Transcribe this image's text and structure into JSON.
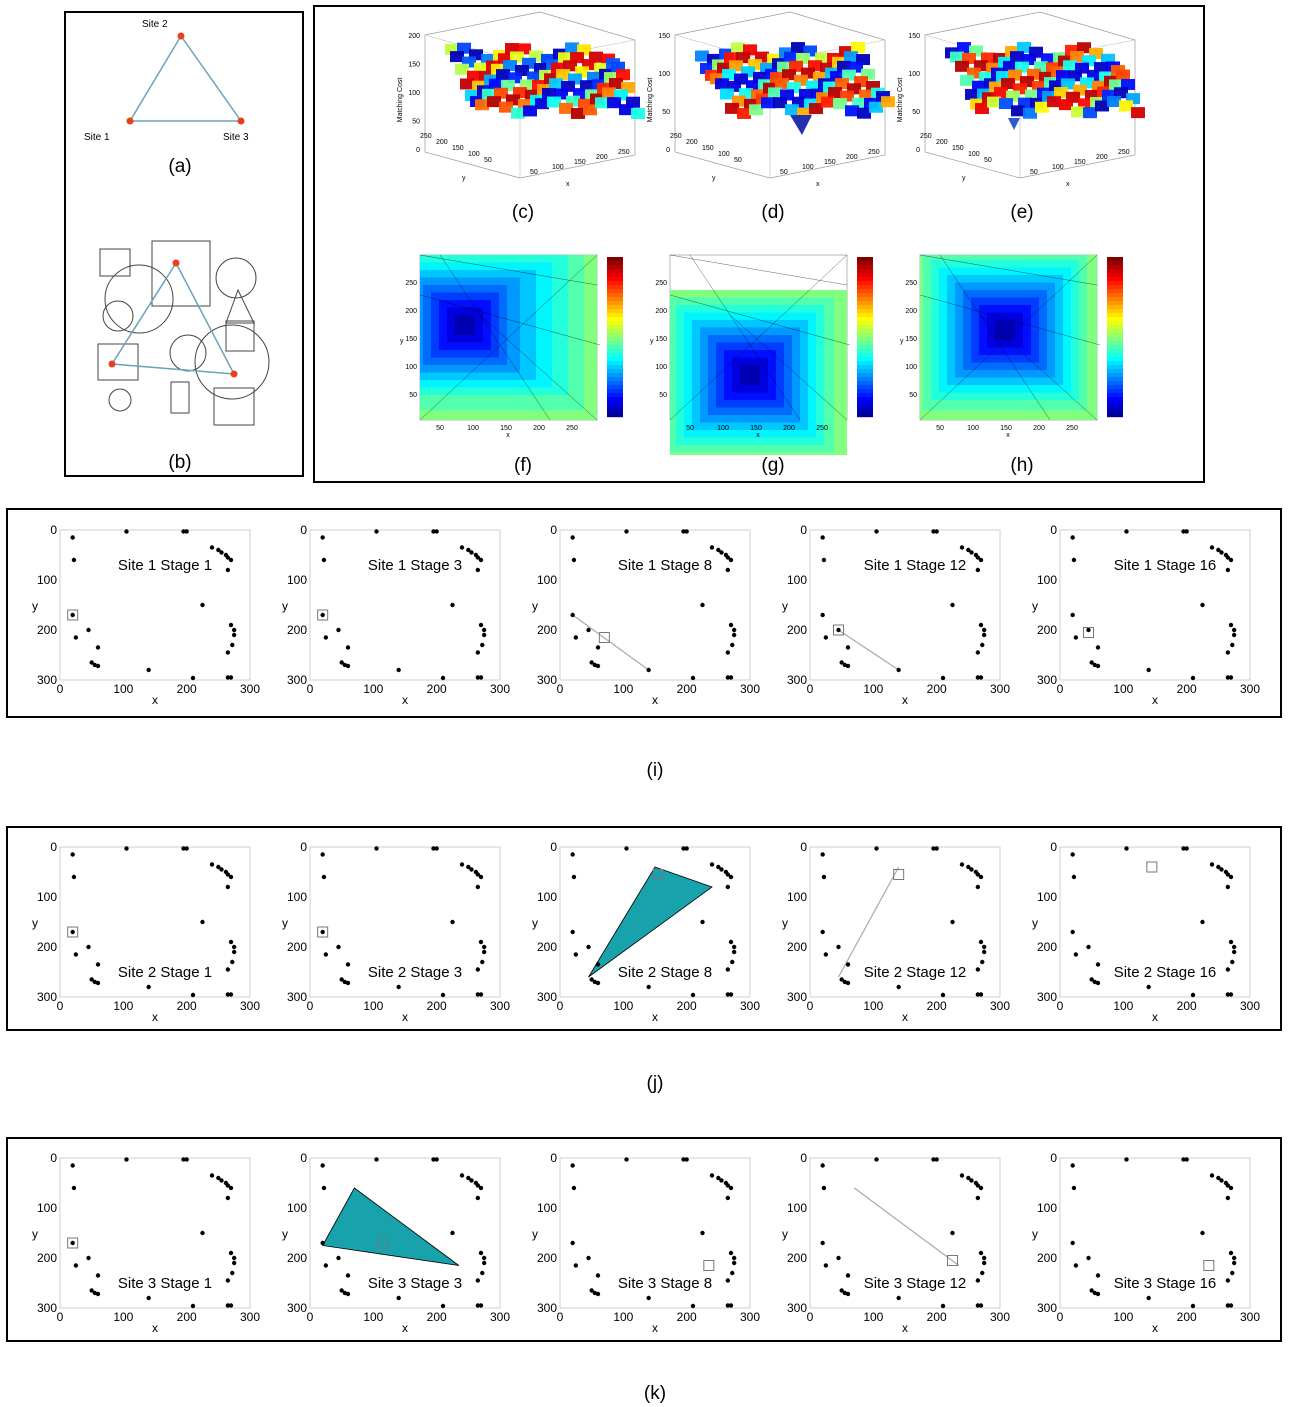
{
  "captions": {
    "a": "(a)",
    "b": "(b)",
    "c": "(c)",
    "d": "(d)",
    "e": "(e)",
    "f": "(f)",
    "g": "(g)",
    "h": "(h)",
    "i": "(i)",
    "j": "(j)",
    "k": "(k)"
  },
  "sites": {
    "s1": "Site 1",
    "s2": "Site 2",
    "s3": "Site 3"
  },
  "surface3d": {
    "zlabel": "Matching Cost",
    "xlabel": "x",
    "ylabel": "y",
    "xticks": [
      "50",
      "100",
      "150",
      "200",
      "250"
    ],
    "yticks": [
      "250",
      "200",
      "150",
      "100",
      "50"
    ],
    "zticks_c": [
      "200",
      "150",
      "100",
      "50",
      "0"
    ],
    "zticks_de": [
      "150",
      "100",
      "50",
      "0"
    ]
  },
  "contour2d": {
    "xlabel": "x",
    "ylabel": "y",
    "xticks": [
      "50",
      "100",
      "150",
      "200",
      "250"
    ],
    "yticks": [
      "250",
      "200",
      "150",
      "100",
      "50"
    ]
  },
  "scatter": {
    "xlabel": "x",
    "ylabel": "y",
    "xticks": [
      "0",
      "100",
      "200",
      "300"
    ],
    "yticks": [
      "0",
      "100",
      "200",
      "300"
    ]
  },
  "rows": {
    "i": {
      "titles": [
        "Site 1 Stage 1",
        "Site 1 Stage 3",
        "Site 1 Stage 8",
        "Site 1 Stage 12",
        "Site 1 Stage 16"
      ]
    },
    "j": {
      "titles": [
        "Site 2 Stage 1",
        "Site 2 Stage 3",
        "Site 2 Stage 8",
        "Site 2 Stage 12",
        "Site 2 Stage 16"
      ]
    },
    "k": {
      "titles": [
        "Site 3 Stage 1",
        "Site 3 Stage 3",
        "Site 3 Stage 8",
        "Site 3 Stage 12",
        "Site 3 Stage 16"
      ]
    }
  },
  "colors": {
    "site_dot": "#e8401c",
    "triangle_line": "#6aa3b8",
    "fill": "#17a2ac",
    "accent": "#000000"
  }
}
